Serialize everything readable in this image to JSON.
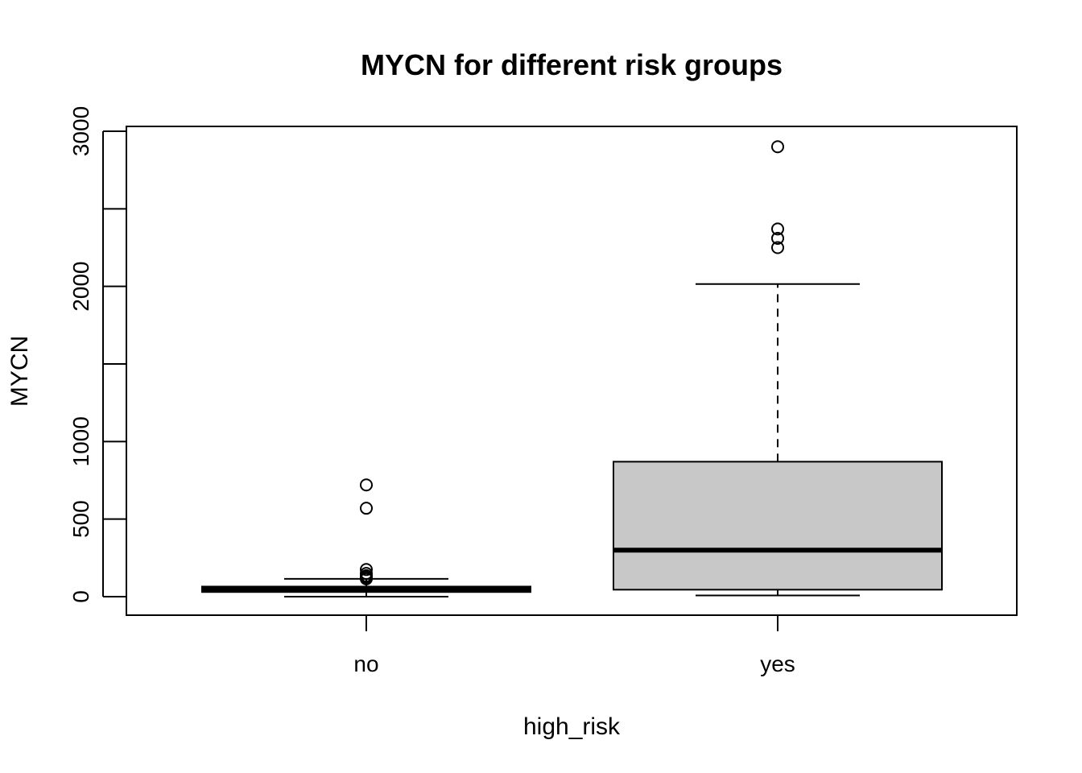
{
  "chart_data": {
    "type": "boxplot",
    "title": "MYCN for different risk groups",
    "xlabel": "high_risk",
    "ylabel": "MYCN",
    "ylim": [
      -100,
      3035
    ],
    "yticks": [
      0,
      500,
      1000,
      1500,
      2000,
      2500,
      3000
    ],
    "ytick_labels": [
      "0",
      "500",
      "1000",
      "",
      "2000",
      "",
      "3000"
    ],
    "categories": [
      "no",
      "yes"
    ],
    "box_fill": "#c8c8c8",
    "stroke_color": "#000000",
    "boxes": [
      {
        "name": "no",
        "whisker_low": 0,
        "q1": 30,
        "median": 45,
        "q3": 65,
        "whisker_high": 115,
        "outliers": [
          115,
          125,
          135,
          150,
          175,
          570,
          720
        ]
      },
      {
        "name": "yes",
        "whisker_low": 8,
        "q1": 45,
        "median": 300,
        "q3": 870,
        "whisker_high": 2015,
        "outliers": [
          2250,
          2310,
          2370,
          2900
        ]
      }
    ]
  }
}
